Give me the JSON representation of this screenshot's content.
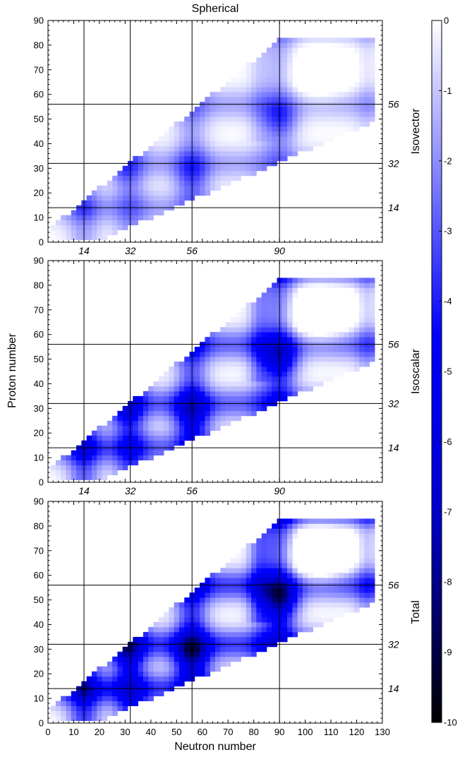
{
  "title": "Spherical",
  "xlabel": "Neutron number",
  "ylabel": "Proton number",
  "colorbar": {
    "ticks": [
      "0",
      "-1",
      "-2",
      "-3",
      "-4",
      "-5",
      "-6",
      "-7",
      "-8",
      "-9",
      "-10"
    ],
    "range": [
      -10,
      0
    ],
    "colors": {
      "zero": "#ffffff",
      "mid": "#0000ff",
      "min": "#000000"
    }
  },
  "chart_data": {
    "type": "heatmap",
    "x_range": [
      0,
      130
    ],
    "y_range": [
      0,
      90
    ],
    "x_ticks": [
      "0",
      "10",
      "20",
      "30",
      "40",
      "50",
      "60",
      "70",
      "80",
      "90",
      "100",
      "110",
      "120",
      "130"
    ],
    "y_ticks": [
      "0",
      "10",
      "20",
      "30",
      "40",
      "50",
      "60",
      "70",
      "80",
      "90"
    ],
    "magic_numbers": [
      14,
      32,
      56,
      90
    ],
    "magic_labels_x": [
      "14",
      "32",
      "56",
      "90"
    ],
    "magic_labels_y": [
      "56",
      "32",
      "14"
    ],
    "panels": [
      {
        "label": "Isovector",
        "show_x_ticks": false,
        "scale": 0.45,
        "ring": 0.65
      },
      {
        "label": "Isoscalar",
        "show_x_ticks": false,
        "scale": 0.8,
        "ring": 0.9
      },
      {
        "label": "Total",
        "show_x_ticks": true,
        "scale": 1.0,
        "ring": 1.0
      }
    ]
  }
}
